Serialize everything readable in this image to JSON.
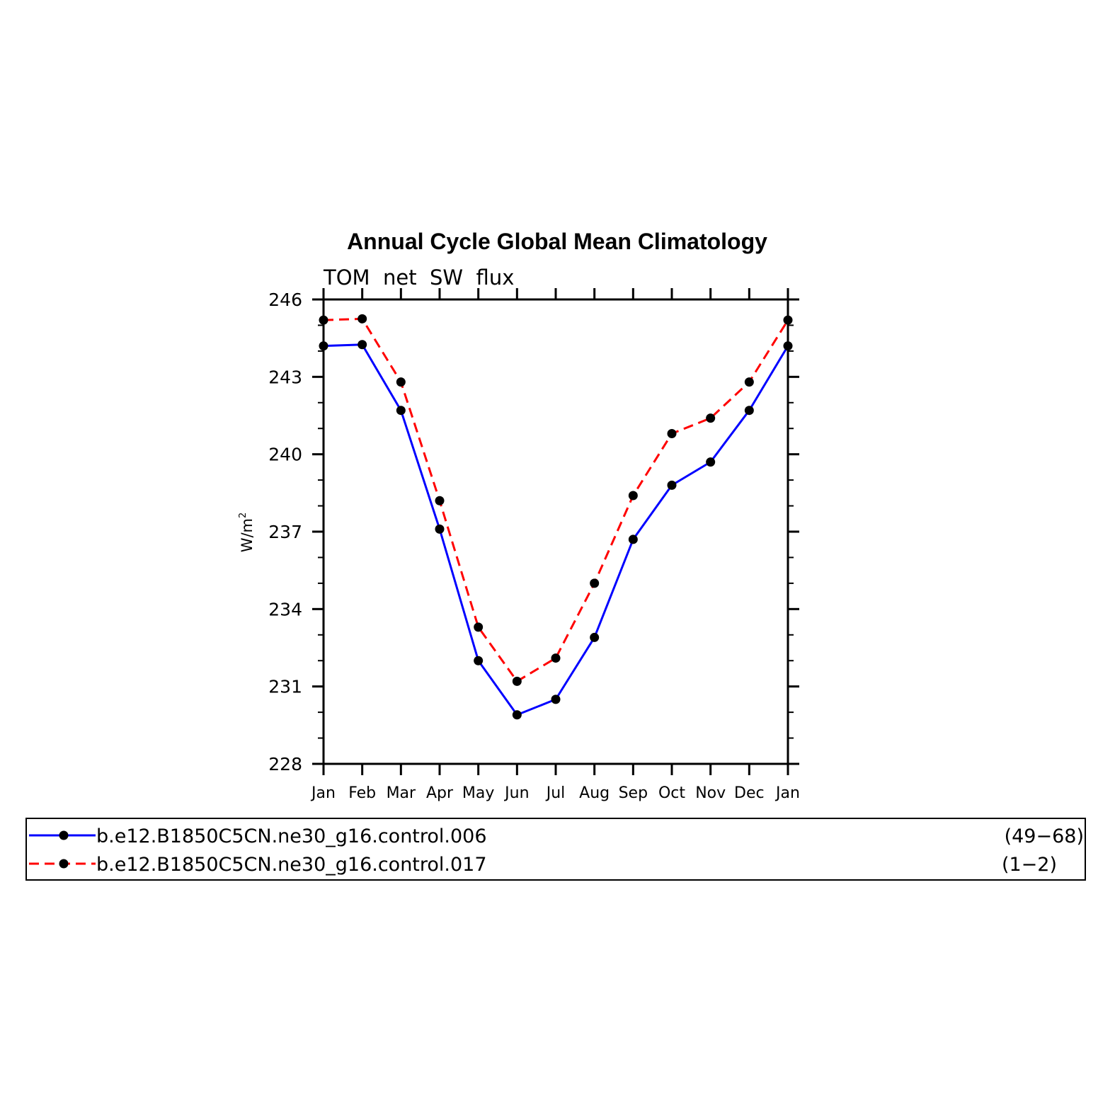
{
  "chart_data": {
    "type": "line",
    "title": "Annual Cycle Global Mean Climatology",
    "subtitle": "TOM  net  SW  flux",
    "ylabel": "W/m",
    "ylabel_superscript": "2",
    "xlabel": "",
    "categories": [
      "Jan",
      "Feb",
      "Mar",
      "Apr",
      "May",
      "Jun",
      "Jul",
      "Aug",
      "Sep",
      "Oct",
      "Nov",
      "Dec",
      "Jan"
    ],
    "ylim": [
      228,
      246
    ],
    "yticks": [
      "246",
      "243",
      "240",
      "237",
      "234",
      "231",
      "228"
    ],
    "ytick_values": [
      246,
      243,
      240,
      237,
      234,
      231,
      228
    ],
    "series": [
      {
        "name": "b.e12.B1850C5CN.ne30_g16.control.006",
        "years": "(49−68)",
        "color": "#0000ff",
        "dash": "solid",
        "values": [
          244.2,
          244.25,
          241.7,
          237.1,
          232.0,
          229.9,
          230.5,
          232.9,
          236.7,
          238.8,
          239.7,
          241.7,
          244.2
        ]
      },
      {
        "name": "b.e12.B1850C5CN.ne30_g16.control.017",
        "years": "(1−2)",
        "color": "#ff0000",
        "dash": "dashed",
        "values": [
          245.2,
          245.25,
          242.8,
          238.2,
          233.3,
          231.2,
          232.1,
          235.0,
          238.4,
          240.8,
          241.4,
          242.8,
          245.2
        ]
      }
    ],
    "marker_color": "#000000",
    "grid": false,
    "legend_position": "bottom"
  }
}
